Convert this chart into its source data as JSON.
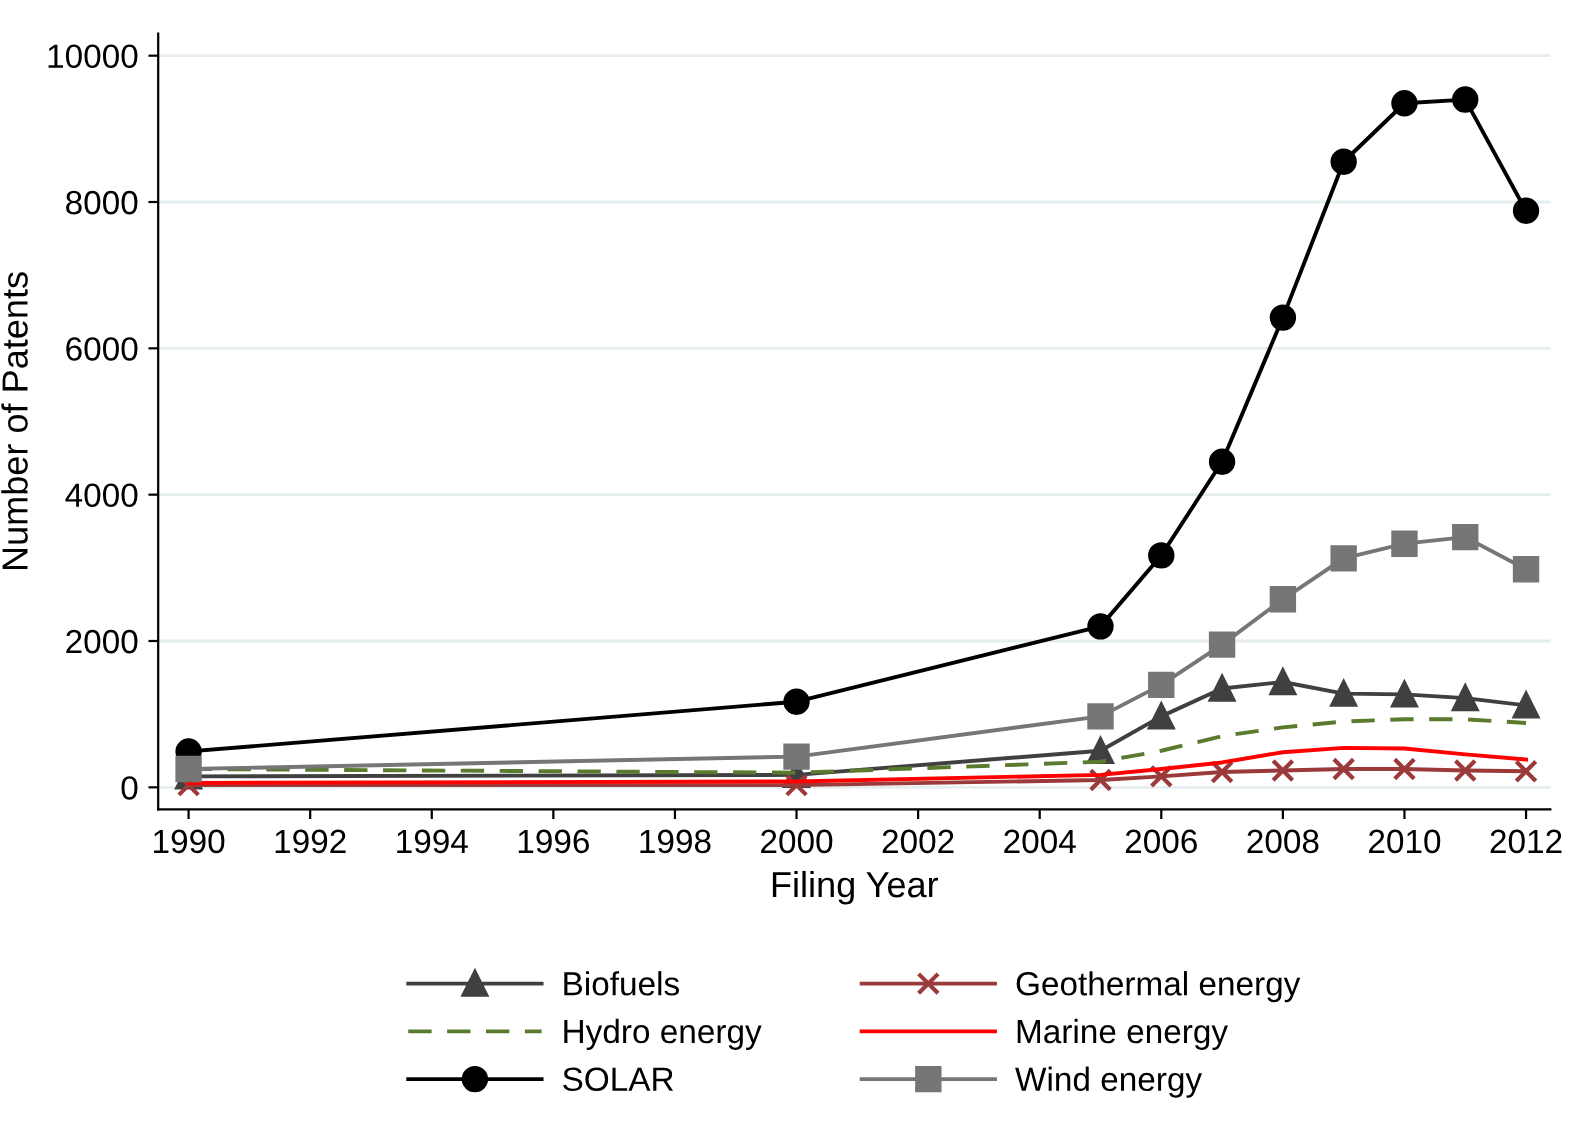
{
  "chart_data": {
    "type": "line",
    "xlabel": "Filing Year",
    "ylabel": "Number of Patents",
    "x": [
      1990,
      2000,
      2005,
      2006,
      2007,
      2008,
      2009,
      2010,
      2011,
      2012
    ],
    "series": [
      {
        "name": "Biofuels",
        "color": "#404040",
        "marker": "triangle",
        "values": [
          150,
          170,
          500,
          970,
          1350,
          1440,
          1280,
          1270,
          1220,
          1120
        ]
      },
      {
        "name": "Geothermal energy",
        "color": "#9b3a3a",
        "marker": "cross",
        "values": [
          30,
          30,
          100,
          150,
          210,
          230,
          250,
          250,
          230,
          220
        ]
      },
      {
        "name": "Hydro energy",
        "color": "#5a7a2e",
        "marker": "none",
        "line_style": "dashed",
        "values": [
          250,
          200,
          350,
          500,
          700,
          820,
          900,
          930,
          930,
          880
        ]
      },
      {
        "name": "Marine energy",
        "color": "#ff0000",
        "marker": "none",
        "values": [
          60,
          80,
          170,
          250,
          340,
          480,
          540,
          530,
          450,
          380
        ]
      },
      {
        "name": "SOLAR",
        "color": "#000000",
        "marker": "circle",
        "values": [
          490,
          1170,
          2200,
          3170,
          4450,
          6420,
          8550,
          9350,
          9400,
          7880
        ]
      },
      {
        "name": "Wind energy",
        "color": "#767676",
        "marker": "square",
        "values": [
          250,
          420,
          970,
          1400,
          1950,
          2570,
          3130,
          3330,
          3420,
          2980
        ]
      }
    ],
    "xlim": [
      1989.5,
      2012.4
    ],
    "ylim": [
      -300,
      10300
    ],
    "xticks": [
      1990,
      1992,
      1994,
      1996,
      1998,
      2000,
      2002,
      2004,
      2006,
      2008,
      2010,
      2012
    ],
    "yticks": [
      0,
      2000,
      4000,
      6000,
      8000,
      10000
    ],
    "grid": "y",
    "legend": "bottom"
  }
}
